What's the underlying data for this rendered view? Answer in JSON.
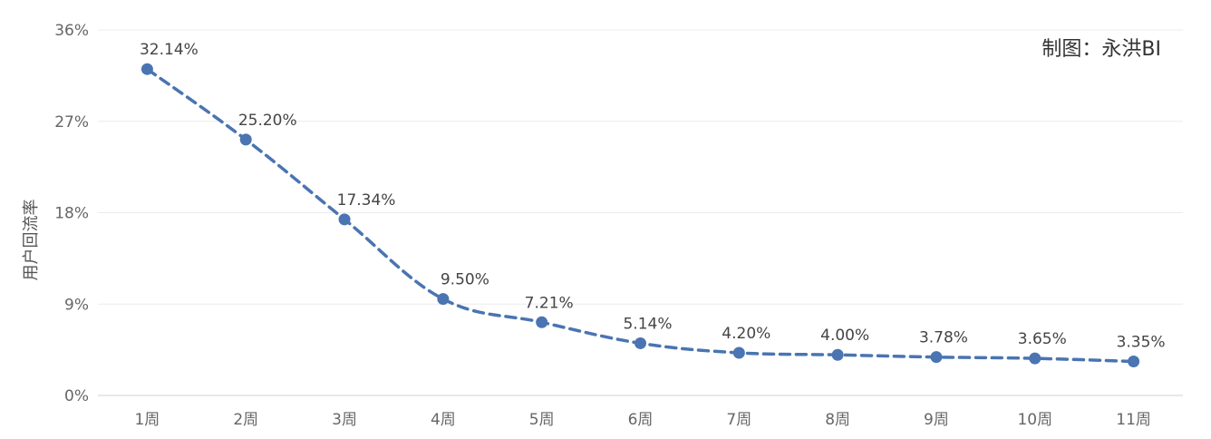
{
  "credit": "制图：永洪BI",
  "chart_data": {
    "type": "line",
    "title": "",
    "xlabel": "",
    "ylabel": "用户回流率",
    "categories": [
      "1周",
      "2周",
      "3周",
      "4周",
      "5周",
      "6周",
      "7周",
      "8周",
      "9周",
      "10周",
      "11周"
    ],
    "values": [
      32.14,
      25.2,
      17.34,
      9.5,
      7.21,
      5.14,
      4.2,
      4.0,
      3.78,
      3.65,
      3.35
    ],
    "data_labels": [
      "32.14%",
      "25.20%",
      "17.34%",
      "9.50%",
      "7.21%",
      "5.14%",
      "4.20%",
      "4.00%",
      "3.78%",
      "3.65%",
      "3.35%"
    ],
    "ylim": [
      0,
      36
    ],
    "yticks": [
      0,
      9,
      18,
      27,
      36
    ],
    "ytick_labels": [
      "0%",
      "9%",
      "18%",
      "27%",
      "36%"
    ],
    "grid": true,
    "line_style": "dashed",
    "series_color": "#4a74b2"
  }
}
